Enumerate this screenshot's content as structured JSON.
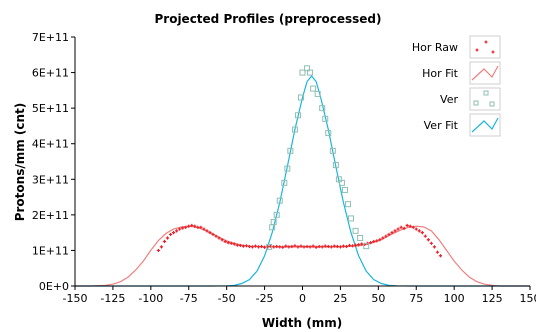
{
  "chart_data": {
    "type": "scatter",
    "title": "Projected Profiles (preprocessed)",
    "xlabel": "Width (mm)",
    "ylabel": "Protons/mm (cnt)",
    "xlim": [
      -150,
      150
    ],
    "ylim": [
      0,
      700000000000
    ],
    "x_ticks": [
      -150,
      -125,
      -100,
      -75,
      -50,
      -25,
      0,
      25,
      50,
      75,
      100,
      125,
      150
    ],
    "y_ticks": [
      {
        "value": 0,
        "label": "0E+0"
      },
      {
        "value": 100000000000,
        "label": "1E+11"
      },
      {
        "value": 200000000000,
        "label": "2E+11"
      },
      {
        "value": 300000000000,
        "label": "3E+11"
      },
      {
        "value": 400000000000,
        "label": "4E+11"
      },
      {
        "value": 500000000000,
        "label": "5E+11"
      },
      {
        "value": 600000000000,
        "label": "6E+11"
      },
      {
        "value": 700000000000,
        "label": "7E+11"
      }
    ],
    "grid": false,
    "legend_position": "top-right",
    "series": [
      {
        "name": "Hor Raw",
        "kind": "points",
        "marker": "cross",
        "color": "#e8222a",
        "points": [
          [
            -95,
            100000000000
          ],
          [
            -93,
            110000000000
          ],
          [
            -91,
            125000000000
          ],
          [
            -89,
            135000000000
          ],
          [
            -87,
            145000000000
          ],
          [
            -85,
            150000000000
          ],
          [
            -83,
            155000000000
          ],
          [
            -81,
            160000000000
          ],
          [
            -79,
            163000000000
          ],
          [
            -77,
            165000000000
          ],
          [
            -75,
            168000000000
          ],
          [
            -73,
            170000000000
          ],
          [
            -71,
            168000000000
          ],
          [
            -69,
            165000000000
          ],
          [
            -67,
            165000000000
          ],
          [
            -65,
            160000000000
          ],
          [
            -63,
            155000000000
          ],
          [
            -61,
            150000000000
          ],
          [
            -59,
            145000000000
          ],
          [
            -57,
            140000000000
          ],
          [
            -55,
            135000000000
          ],
          [
            -53,
            130000000000
          ],
          [
            -51,
            125000000000
          ],
          [
            -49,
            122000000000
          ],
          [
            -47,
            120000000000
          ],
          [
            -45,
            118000000000
          ],
          [
            -43,
            115000000000
          ],
          [
            -41,
            114000000000
          ],
          [
            -39,
            112000000000
          ],
          [
            -37,
            113000000000
          ],
          [
            -35,
            111000000000
          ],
          [
            -33,
            110000000000
          ],
          [
            -31,
            112000000000
          ],
          [
            -29,
            110000000000
          ],
          [
            -27,
            111000000000
          ],
          [
            -25,
            109000000000
          ],
          [
            -23,
            110000000000
          ],
          [
            -21,
            112000000000
          ],
          [
            -19,
            110000000000
          ],
          [
            -17,
            111000000000
          ],
          [
            -15,
            110000000000
          ],
          [
            -13,
            109000000000
          ],
          [
            -11,
            112000000000
          ],
          [
            -9,
            110000000000
          ],
          [
            -7,
            111000000000
          ],
          [
            -5,
            113000000000
          ],
          [
            -3,
            110000000000
          ],
          [
            -1,
            112000000000
          ],
          [
            1,
            110000000000
          ],
          [
            3,
            111000000000
          ],
          [
            5,
            110000000000
          ],
          [
            7,
            112000000000
          ],
          [
            9,
            109000000000
          ],
          [
            11,
            111000000000
          ],
          [
            13,
            110000000000
          ],
          [
            15,
            112000000000
          ],
          [
            17,
            111000000000
          ],
          [
            19,
            110000000000
          ],
          [
            21,
            112000000000
          ],
          [
            23,
            111000000000
          ],
          [
            25,
            110000000000
          ],
          [
            27,
            112000000000
          ],
          [
            29,
            111000000000
          ],
          [
            31,
            114000000000
          ],
          [
            33,
            113000000000
          ],
          [
            35,
            115000000000
          ],
          [
            37,
            116000000000
          ],
          [
            39,
            118000000000
          ],
          [
            41,
            117000000000
          ],
          [
            43,
            120000000000
          ],
          [
            45,
            122000000000
          ],
          [
            47,
            125000000000
          ],
          [
            49,
            127000000000
          ],
          [
            51,
            130000000000
          ],
          [
            53,
            135000000000
          ],
          [
            55,
            140000000000
          ],
          [
            57,
            145000000000
          ],
          [
            59,
            150000000000
          ],
          [
            61,
            155000000000
          ],
          [
            63,
            160000000000
          ],
          [
            65,
            165000000000
          ],
          [
            67,
            162000000000
          ],
          [
            69,
            170000000000
          ],
          [
            71,
            168000000000
          ],
          [
            73,
            165000000000
          ],
          [
            75,
            160000000000
          ],
          [
            77,
            155000000000
          ],
          [
            79,
            150000000000
          ],
          [
            81,
            140000000000
          ],
          [
            83,
            130000000000
          ],
          [
            85,
            120000000000
          ],
          [
            87,
            110000000000
          ],
          [
            89,
            95000000000
          ],
          [
            91,
            85000000000
          ]
        ]
      },
      {
        "name": "Hor Fit",
        "kind": "line",
        "color": "#f08080",
        "points": [
          [
            -150,
            0
          ],
          [
            -140,
            0
          ],
          [
            -130,
            2000000000
          ],
          [
            -125,
            5000000000
          ],
          [
            -120,
            12000000000
          ],
          [
            -115,
            25000000000
          ],
          [
            -110,
            45000000000
          ],
          [
            -105,
            70000000000
          ],
          [
            -100,
            100000000000
          ],
          [
            -95,
            128000000000
          ],
          [
            -90,
            148000000000
          ],
          [
            -85,
            160000000000
          ],
          [
            -80,
            166000000000
          ],
          [
            -75,
            168000000000
          ],
          [
            -70,
            165000000000
          ],
          [
            -65,
            158000000000
          ],
          [
            -60,
            148000000000
          ],
          [
            -55,
            137000000000
          ],
          [
            -50,
            127000000000
          ],
          [
            -45,
            120000000000
          ],
          [
            -40,
            115000000000
          ],
          [
            -35,
            112000000000
          ],
          [
            -30,
            111000000000
          ],
          [
            -25,
            110000000000
          ],
          [
            -20,
            110000000000
          ],
          [
            -10,
            110000000000
          ],
          [
            0,
            110000000000
          ],
          [
            10,
            110000000000
          ],
          [
            20,
            110000000000
          ],
          [
            25,
            110000000000
          ],
          [
            30,
            111000000000
          ],
          [
            35,
            112000000000
          ],
          [
            40,
            115000000000
          ],
          [
            45,
            120000000000
          ],
          [
            50,
            127000000000
          ],
          [
            55,
            137000000000
          ],
          [
            60,
            148000000000
          ],
          [
            65,
            158000000000
          ],
          [
            70,
            165000000000
          ],
          [
            75,
            168000000000
          ],
          [
            80,
            166000000000
          ],
          [
            85,
            155000000000
          ],
          [
            90,
            130000000000
          ],
          [
            95,
            100000000000
          ],
          [
            100,
            70000000000
          ],
          [
            105,
            45000000000
          ],
          [
            110,
            25000000000
          ],
          [
            115,
            12000000000
          ],
          [
            120,
            5000000000
          ],
          [
            125,
            2000000000
          ],
          [
            130,
            0
          ],
          [
            150,
            0
          ]
        ]
      },
      {
        "name": "Ver",
        "kind": "points",
        "marker": "square",
        "color": "#8fbfb3",
        "points": [
          [
            -22,
            110000000000
          ],
          [
            -20,
            165000000000
          ],
          [
            -19,
            180000000000
          ],
          [
            -17,
            200000000000
          ],
          [
            -15,
            240000000000
          ],
          [
            -12,
            290000000000
          ],
          [
            -10,
            330000000000
          ],
          [
            -8,
            380000000000
          ],
          [
            -5,
            440000000000
          ],
          [
            -3,
            480000000000
          ],
          [
            -1,
            530000000000
          ],
          [
            0,
            600000000000
          ],
          [
            3,
            612000000000
          ],
          [
            5,
            600000000000
          ],
          [
            7,
            555000000000
          ],
          [
            10,
            540000000000
          ],
          [
            13,
            500000000000
          ],
          [
            15,
            470000000000
          ],
          [
            17,
            430000000000
          ],
          [
            20,
            380000000000
          ],
          [
            22,
            340000000000
          ],
          [
            24,
            300000000000
          ],
          [
            26,
            290000000000
          ],
          [
            28,
            270000000000
          ],
          [
            30,
            230000000000
          ],
          [
            32,
            190000000000
          ],
          [
            35,
            155000000000
          ],
          [
            38,
            135000000000
          ],
          [
            42,
            112000000000
          ]
        ]
      },
      {
        "name": "Ver Fit",
        "kind": "line",
        "color": "#1bb5e0",
        "points": [
          [
            -150,
            0
          ],
          [
            -60,
            0
          ],
          [
            -50,
            500000000
          ],
          [
            -45,
            2000000000
          ],
          [
            -40,
            7000000000
          ],
          [
            -35,
            18000000000
          ],
          [
            -30,
            42000000000
          ],
          [
            -25,
            85000000000
          ],
          [
            -20,
            150000000000
          ],
          [
            -15,
            235000000000
          ],
          [
            -10,
            335000000000
          ],
          [
            -5,
            440000000000
          ],
          [
            0,
            530000000000
          ],
          [
            3,
            575000000000
          ],
          [
            6,
            590000000000
          ],
          [
            9,
            575000000000
          ],
          [
            12,
            530000000000
          ],
          [
            17,
            440000000000
          ],
          [
            22,
            335000000000
          ],
          [
            27,
            235000000000
          ],
          [
            32,
            150000000000
          ],
          [
            37,
            85000000000
          ],
          [
            42,
            42000000000
          ],
          [
            47,
            18000000000
          ],
          [
            52,
            7000000000
          ],
          [
            57,
            2000000000
          ],
          [
            62,
            500000000
          ],
          [
            72,
            0
          ],
          [
            150,
            0
          ]
        ]
      }
    ]
  }
}
